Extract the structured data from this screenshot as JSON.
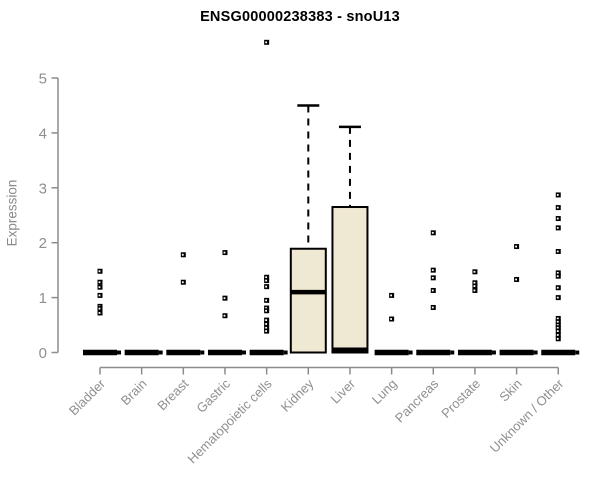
{
  "chart_data": {
    "type": "boxplot",
    "title": "ENSG00000238383 - snoU13",
    "ylabel": "Expression",
    "xlabel": "",
    "ylim": [
      0,
      5
    ],
    "yticks": [
      0,
      1,
      2,
      3,
      4,
      5
    ],
    "grid": false,
    "legend": false,
    "categories": [
      "Bladder",
      "Brain",
      "Breast",
      "Gastric",
      "Hematopoietic cells",
      "Kidney",
      "Liver",
      "Lung",
      "Pancreas",
      "Prostate",
      "Skin",
      "Unknown / Other"
    ],
    "boxes": [
      {
        "category": "Bladder",
        "q1": 0,
        "median": 0,
        "q3": 0,
        "whisker_low": 0,
        "whisker_high": 0,
        "outliers": [
          1.48,
          1.28,
          1.19,
          1.04,
          0.84,
          0.8,
          0.72
        ]
      },
      {
        "category": "Brain",
        "q1": 0,
        "median": 0,
        "q3": 0,
        "whisker_low": 0,
        "whisker_high": 0,
        "outliers": []
      },
      {
        "category": "Breast",
        "q1": 0,
        "median": 0,
        "q3": 0,
        "whisker_low": 0,
        "whisker_high": 0,
        "outliers": [
          1.78,
          1.28
        ]
      },
      {
        "category": "Gastric",
        "q1": 0,
        "median": 0,
        "q3": 0,
        "whisker_low": 0,
        "whisker_high": 0,
        "outliers": [
          1.82,
          0.99,
          0.67
        ]
      },
      {
        "category": "Hematopoietic cells",
        "q1": 0,
        "median": 0,
        "q3": 0,
        "whisker_low": 0,
        "whisker_high": 0,
        "outliers": [
          5.65,
          1.37,
          1.31,
          1.2,
          0.95,
          0.81,
          0.76,
          0.59,
          0.52,
          0.45,
          0.39
        ]
      },
      {
        "category": "Kidney",
        "q1": 0,
        "median": 1.1,
        "q3": 1.89,
        "whisker_low": 0,
        "whisker_high": 4.5,
        "outliers": []
      },
      {
        "category": "Liver",
        "q1": 0,
        "median": 0,
        "q3": 2.65,
        "whisker_low": 0,
        "whisker_high": 4.11,
        "outliers": []
      },
      {
        "category": "Lung",
        "q1": 0,
        "median": 0,
        "q3": 0,
        "whisker_low": 0,
        "whisker_high": 0,
        "outliers": [
          1.04,
          0.61
        ]
      },
      {
        "category": "Pancreas",
        "q1": 0,
        "median": 0,
        "q3": 0,
        "whisker_low": 0,
        "whisker_high": 0,
        "outliers": [
          2.18,
          1.5,
          1.36,
          1.13,
          0.82
        ]
      },
      {
        "category": "Prostate",
        "q1": 0,
        "median": 0,
        "q3": 0,
        "whisker_low": 0,
        "whisker_high": 0,
        "outliers": [
          1.47,
          1.27,
          1.21,
          1.13
        ]
      },
      {
        "category": "Skin",
        "q1": 0,
        "median": 0,
        "q3": 0,
        "whisker_low": 0,
        "whisker_high": 0,
        "outliers": [
          1.93,
          1.33
        ]
      },
      {
        "category": "Unknown / Other",
        "q1": 0,
        "median": 0,
        "q3": 0,
        "whisker_low": 0,
        "whisker_high": 0,
        "outliers": [
          2.87,
          2.64,
          2.44,
          2.27,
          1.84,
          1.45,
          1.39,
          1.18,
          1.0,
          0.62,
          0.56,
          0.5,
          0.45,
          0.39,
          0.32,
          0.25
        ]
      }
    ],
    "colors": {
      "box_fill": "#EFE8D2",
      "box_stroke": "#000000",
      "marker": "#000000",
      "axis": "#8C8C8C",
      "tick_label": "#8F8F8F",
      "title": "#000000"
    }
  }
}
